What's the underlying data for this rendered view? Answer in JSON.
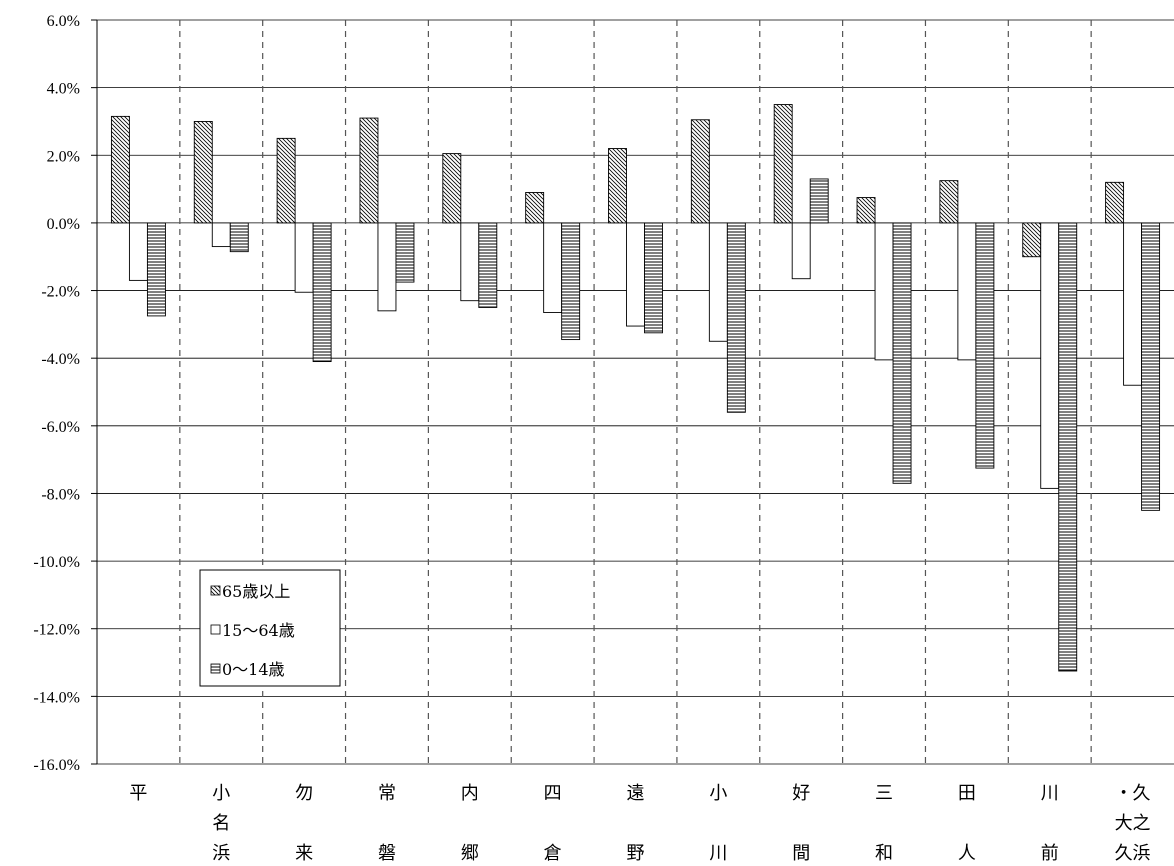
{
  "chart_data": {
    "type": "bar",
    "categories": [
      "平",
      "小名浜",
      "勿来",
      "常磐",
      "内郷",
      "四倉",
      "遠野",
      "小川",
      "好間",
      "三和",
      "田人",
      "川前",
      "久之浜・大久"
    ],
    "category_labels": [
      [
        "平"
      ],
      [
        "小",
        "名",
        "浜"
      ],
      [
        "勿",
        "",
        "来"
      ],
      [
        "常",
        "",
        "磐"
      ],
      [
        "内",
        "",
        "郷"
      ],
      [
        "四",
        "",
        "倉"
      ],
      [
        "遠",
        "",
        "野"
      ],
      [
        "小",
        "",
        "川"
      ],
      [
        "好",
        "",
        "間"
      ],
      [
        "三",
        "",
        "和"
      ],
      [
        "田",
        "",
        "人"
      ],
      [
        "川",
        "",
        "前"
      ],
      [
        "・久",
        "大之",
        "久浜"
      ]
    ],
    "series": [
      {
        "name": "65歳以上",
        "values": [
          3.15,
          3.0,
          2.5,
          3.1,
          2.05,
          0.9,
          2.2,
          3.05,
          3.5,
          0.75,
          1.25,
          -1.0,
          1.2
        ]
      },
      {
        "name": "15〜64歳",
        "values": [
          -1.7,
          -0.7,
          -2.05,
          -2.6,
          -2.3,
          -2.65,
          -3.05,
          -3.5,
          -1.65,
          -4.05,
          -4.05,
          -7.85,
          -4.8
        ]
      },
      {
        "name": "0〜14歳",
        "values": [
          -2.75,
          -0.85,
          -4.1,
          -1.75,
          -2.5,
          -3.45,
          -3.25,
          -5.6,
          1.3,
          -7.7,
          -7.25,
          -13.25,
          -8.5
        ]
      }
    ],
    "ylim": [
      -16,
      6
    ],
    "yticks": [
      "6.0%",
      "4.0%",
      "2.0%",
      "0.0%",
      "-2.0%",
      "-4.0%",
      "-6.0%",
      "-8.0%",
      "-10.0%",
      "-12.0%",
      "-14.0%",
      "-16.0%"
    ],
    "title": "",
    "xlabel": "",
    "ylabel": "",
    "grid": true,
    "legend_position": "bottom-left"
  }
}
